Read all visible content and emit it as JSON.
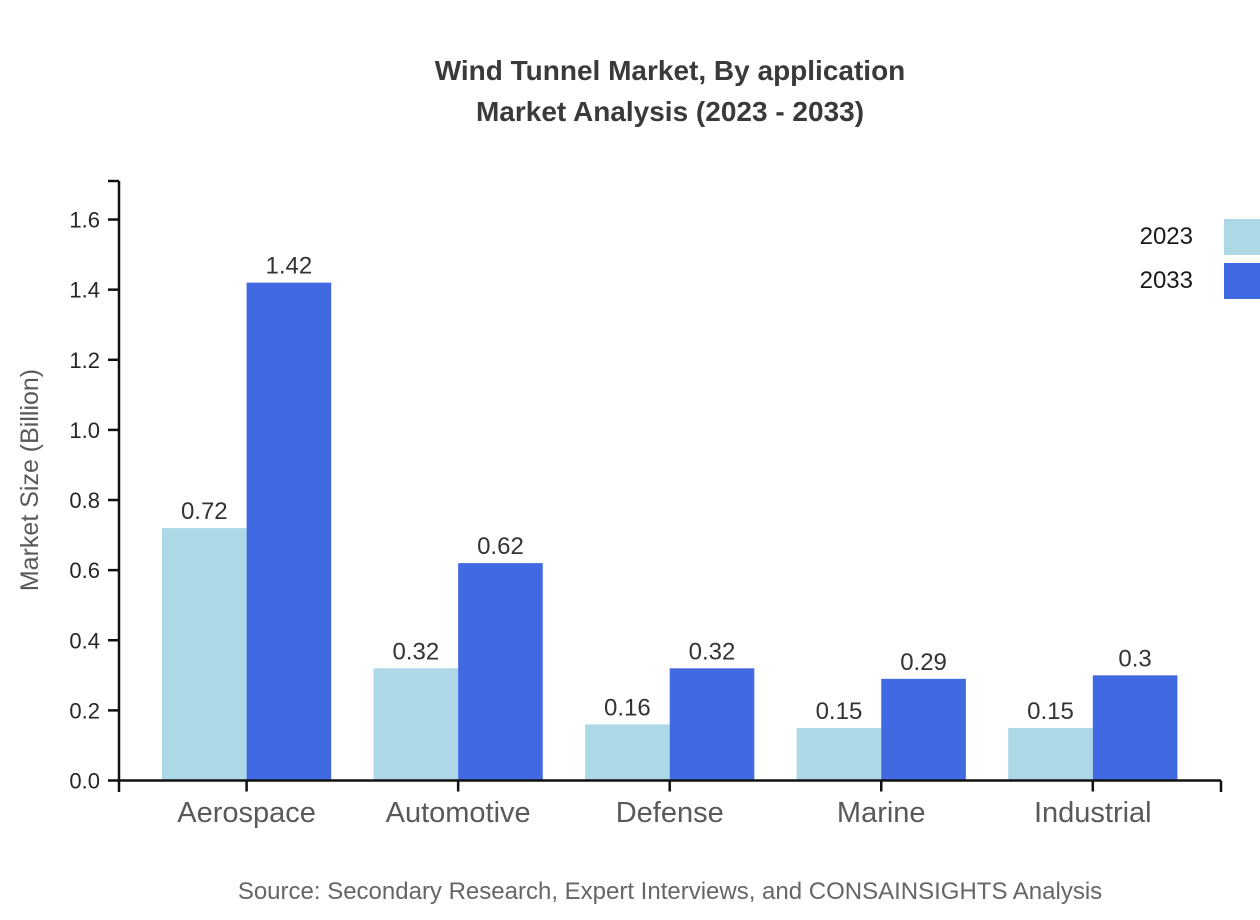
{
  "figure": {
    "title_line1": "Wind Tunnel Market, By application",
    "title_line2": "Market Analysis (2023 - 2033)",
    "source": "Source: Secondary Research, Expert Interviews, and CONSAINSIGHTS Analysis"
  },
  "legend": {
    "items": [
      {
        "label": "2023",
        "color": "#ADD8E6"
      },
      {
        "label": "2033",
        "color": "#4169E1"
      }
    ]
  },
  "chart_data": {
    "type": "bar",
    "title": "Wind Tunnel Market, By application\nMarket Analysis (2023 - 2033)",
    "categories": [
      "Aerospace",
      "Automotive",
      "Defense",
      "Marine",
      "Industrial"
    ],
    "series": [
      {
        "name": "2023",
        "color": "#ADD8E6",
        "values": [
          0.72,
          0.32,
          0.16,
          0.15,
          0.15
        ]
      },
      {
        "name": "2033",
        "color": "#4169E1",
        "values": [
          1.42,
          0.62,
          0.32,
          0.29,
          0.3
        ]
      }
    ],
    "xlabel": "",
    "ylabel": "Market Size (Billion)",
    "ylim": [
      0,
      1.7
    ],
    "yticks": [
      0,
      0.2,
      0.4,
      0.6,
      0.8,
      1,
      1.2,
      1.4,
      1.6
    ],
    "grid": false,
    "legend_position": "upper-right",
    "value_labels": true,
    "source": "Source: Secondary Research, Expert Interviews, and CONSAINSIGHTS Analysis"
  },
  "colors": {
    "title": "#3a3a3a",
    "axis": "#111111",
    "tick_label": "#262626",
    "category_label": "#595959",
    "value_label": "#333333",
    "y_axis_label": "#595959",
    "source": "#666666"
  }
}
